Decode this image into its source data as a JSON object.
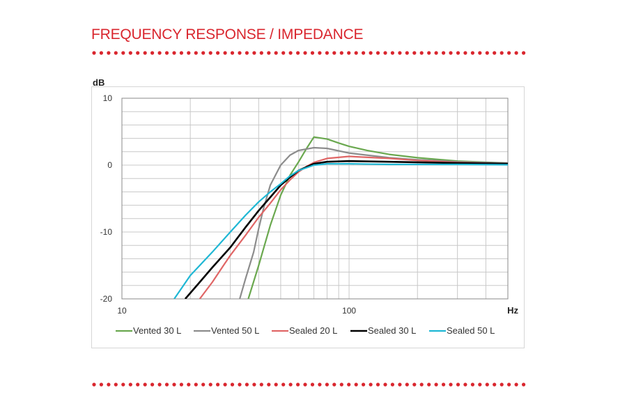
{
  "header": {
    "title": "FREQUENCY RESPONSE / IMPEDANCE"
  },
  "colors": {
    "accent": "#d9262e",
    "grid": "#c8c8c8",
    "axis": "#8a8a8a"
  },
  "chart_data": {
    "type": "line",
    "title": "",
    "xlabel": "Hz",
    "ylabel": "dB",
    "xscale": "log",
    "xlim": [
      10,
      500
    ],
    "ylim": [
      -20,
      10
    ],
    "xticks": [
      10,
      100
    ],
    "xtick_labels": [
      "10",
      "100"
    ],
    "yticks": [
      10,
      0,
      -10,
      -20
    ],
    "ytick_labels": [
      "10",
      "0",
      "-10",
      "-20"
    ],
    "grid": true,
    "legend": "bottom",
    "series": [
      {
        "name": "Vented 30 L",
        "color": "#6aa84f",
        "x": [
          36,
          40,
          45,
          50,
          55,
          60,
          65,
          70,
          80,
          90,
          100,
          120,
          150,
          200,
          300,
          500
        ],
        "y": [
          -20,
          -15,
          -9,
          -4.5,
          -1.5,
          0.5,
          2.5,
          4.2,
          3.9,
          3.3,
          2.8,
          2.2,
          1.6,
          1.1,
          0.6,
          0.3
        ]
      },
      {
        "name": "Vented 50 L",
        "color": "#8c8c8c",
        "x": [
          33,
          35,
          38,
          40,
          42,
          45,
          50,
          55,
          60,
          70,
          80,
          100,
          150,
          200,
          300,
          500
        ],
        "y": [
          -20,
          -17,
          -13,
          -9.5,
          -6.5,
          -3,
          0,
          1.5,
          2.2,
          2.6,
          2.5,
          1.8,
          1.1,
          0.8,
          0.5,
          0.3
        ]
      },
      {
        "name": "Sealed 20 L",
        "color": "#e06666",
        "x": [
          22,
          25,
          28,
          30,
          35,
          40,
          45,
          50,
          55,
          60,
          65,
          70,
          80,
          100,
          150,
          200,
          300,
          500
        ],
        "y": [
          -20,
          -17.5,
          -15,
          -13.5,
          -10.5,
          -7.8,
          -5.7,
          -3.7,
          -2.2,
          -1,
          -0.2,
          0.4,
          1,
          1.3,
          1,
          0.7,
          0.4,
          0.2
        ]
      },
      {
        "name": "Sealed 30 L",
        "color": "#000000",
        "x": [
          19,
          22,
          25,
          30,
          35,
          40,
          45,
          50,
          55,
          60,
          70,
          80,
          100,
          150,
          300,
          500
        ],
        "y": [
          -20,
          -17.5,
          -15.3,
          -12.3,
          -9.3,
          -6.8,
          -4.8,
          -3,
          -1.8,
          -0.8,
          0.2,
          0.5,
          0.6,
          0.5,
          0.3,
          0.2
        ]
      },
      {
        "name": "Sealed 50 L",
        "color": "#1fb7d4",
        "x": [
          17,
          20,
          25,
          30,
          35,
          40,
          45,
          50,
          55,
          60,
          70,
          80,
          100,
          150,
          300,
          500
        ],
        "y": [
          -20,
          -16.5,
          -13,
          -10,
          -7.5,
          -5.5,
          -4,
          -2.8,
          -1.6,
          -0.8,
          0,
          0.2,
          0.2,
          0.1,
          0.1,
          0.05
        ]
      }
    ]
  }
}
